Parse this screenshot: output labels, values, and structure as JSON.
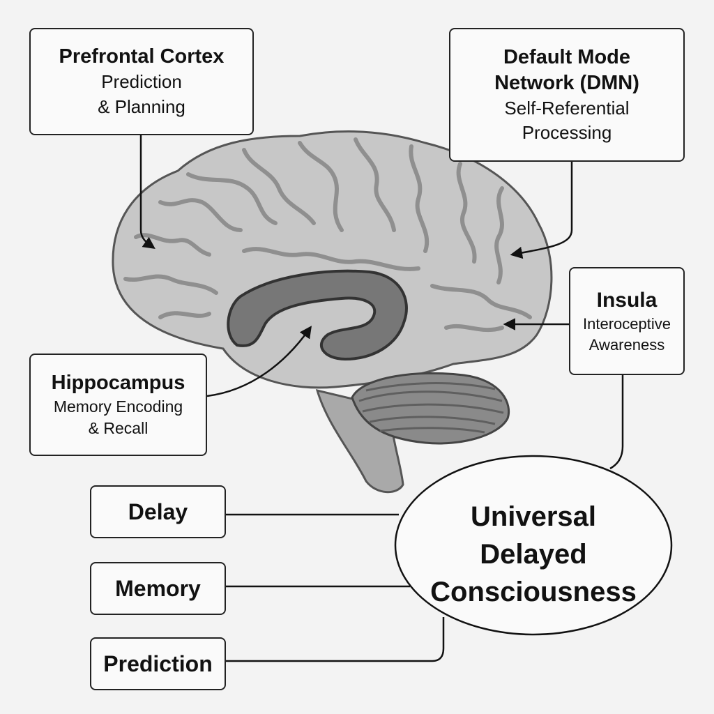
{
  "prefrontal": {
    "title": "Prefrontal Cortex",
    "desc_line1": "Prediction",
    "desc_line2": "& Planning"
  },
  "dmn": {
    "title_line1": "Default Mode",
    "title_line2": "Network (DMN)",
    "desc_line1": "Self-Referential",
    "desc_line2": "Processing"
  },
  "insula": {
    "title": "Insula",
    "desc_line1": "Interoceptive",
    "desc_line2": "Awareness"
  },
  "hippocampus": {
    "title": "Hippocampus",
    "desc_line1": "Memory Encoding",
    "desc_line2": "& Recall"
  },
  "concepts": {
    "delay": "Delay",
    "memory": "Memory",
    "prediction": "Prediction"
  },
  "center": {
    "line1": "Universal",
    "line2": "Delayed",
    "line3": "Consciousness"
  },
  "colors": {
    "background": "#f3f3f3",
    "cortex": "#c7c7c7",
    "hippocampus": "#777777",
    "cerebellum": "#8a8a8a",
    "brainstem": "#a9a9a9",
    "line": "#111111"
  }
}
